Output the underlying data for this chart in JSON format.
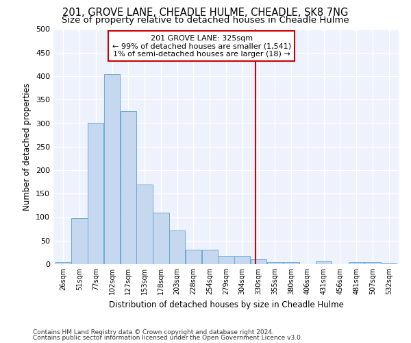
{
  "title1": "201, GROVE LANE, CHEADLE HULME, CHEADLE, SK8 7NG",
  "title2": "Size of property relative to detached houses in Cheadle Hulme",
  "xlabel": "Distribution of detached houses by size in Cheadle Hulme",
  "ylabel": "Number of detached properties",
  "footnote1": "Contains HM Land Registry data © Crown copyright and database right 2024.",
  "footnote2": "Contains public sector information licensed under the Open Government Licence v3.0.",
  "bin_labels": [
    "26sqm",
    "51sqm",
    "77sqm",
    "102sqm",
    "127sqm",
    "153sqm",
    "178sqm",
    "203sqm",
    "228sqm",
    "254sqm",
    "279sqm",
    "304sqm",
    "330sqm",
    "355sqm",
    "380sqm",
    "406sqm",
    "431sqm",
    "456sqm",
    "481sqm",
    "507sqm",
    "532sqm"
  ],
  "bar_heights": [
    5,
    98,
    300,
    405,
    325,
    170,
    110,
    72,
    30,
    30,
    18,
    17,
    10,
    5,
    4,
    0,
    6,
    0,
    4,
    5,
    2
  ],
  "bar_color": "#c5d8f0",
  "bar_edge_color": "#6aaad4",
  "vline_color": "#cc0000",
  "annotation_title": "201 GROVE LANE: 325sqm",
  "annotation_line1": "← 99% of detached houses are smaller (1,541)",
  "annotation_line2": "1% of semi-detached houses are larger (18) →",
  "annotation_box_color": "#cc0000",
  "ylim": [
    0,
    500
  ],
  "yticks": [
    0,
    50,
    100,
    150,
    200,
    250,
    300,
    350,
    400,
    450,
    500
  ],
  "background_color": "#eef2fc",
  "title1_fontsize": 10.5,
  "title2_fontsize": 9.5,
  "footnote_fontsize": 6.5
}
